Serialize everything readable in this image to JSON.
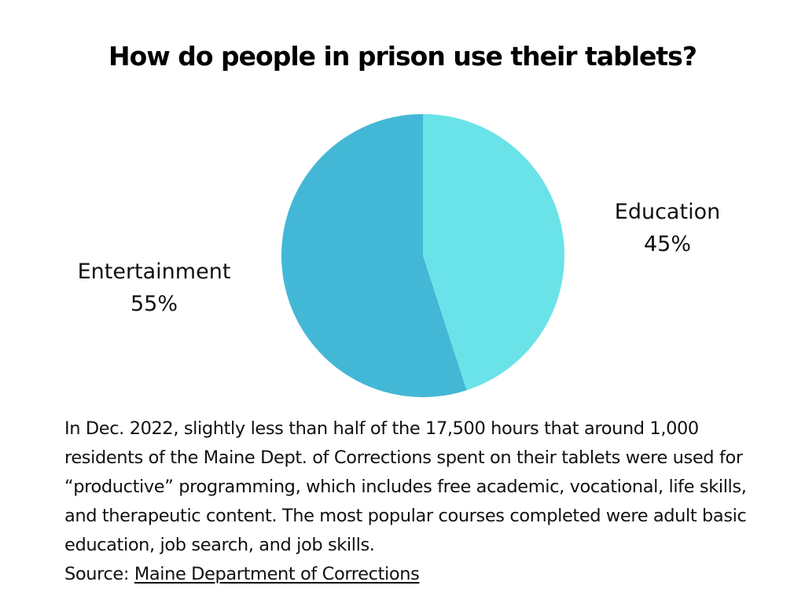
{
  "title": "How do people in prison use their tablets?",
  "chart_data": {
    "type": "pie",
    "title": "How do people in prison use their tablets?",
    "slices": [
      {
        "label": "Education",
        "value": 45,
        "value_label": "45%",
        "color": "#6ae3e8"
      },
      {
        "label": "Entertainment",
        "value": 55,
        "value_label": "55%",
        "color": "#43b8d6"
      }
    ]
  },
  "description": "In Dec. 2022, slightly less than half of the 17,500 hours that around 1,000 residents of the Maine Dept. of Corrections spent on their tablets were used for “productive” programming, which includes free academic, vocational, life skills, and therapeutic content. The most popular courses completed were adult basic education, job search, and job skills.",
  "source": {
    "prefix": "Source:",
    "link_text": "Maine Department of Corrections"
  }
}
